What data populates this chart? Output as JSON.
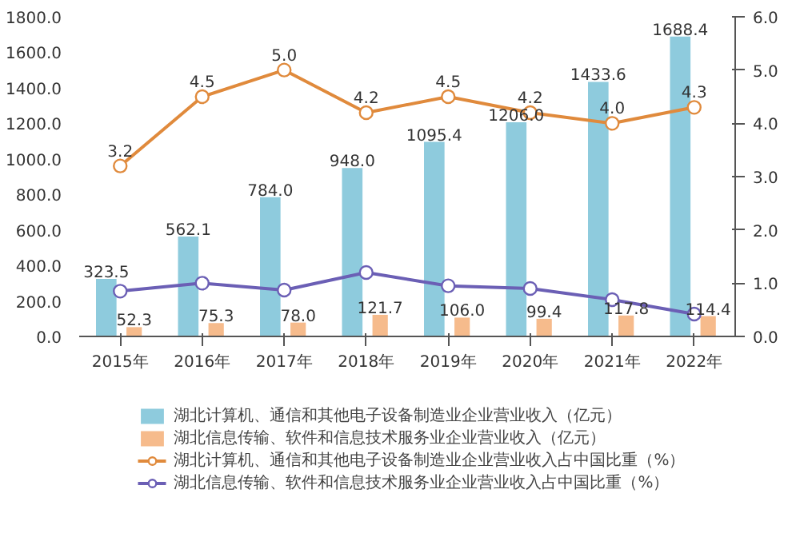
{
  "chart_data": {
    "type": "bar",
    "categories": [
      "2015年",
      "2016年",
      "2017年",
      "2018年",
      "2019年",
      "2020年",
      "2021年",
      "2022年"
    ],
    "series": [
      {
        "name": "湖北计算机、通信和其他电子设备制造业企业营业收入（亿元）",
        "color": "#8ecbdd",
        "values": [
          323.5,
          562.1,
          784.0,
          948.0,
          1095.4,
          1206.0,
          1433.6,
          1688.4
        ],
        "value_labels": [
          "323.5",
          "562.1",
          "784.0",
          "948.0",
          "1095.4",
          "1206.0",
          "1433.6",
          "1688.4"
        ]
      },
      {
        "name": "湖北信息传输、软件和信息技术服务业企业营业收入（亿元）",
        "color": "#f6bb8c",
        "values": [
          52.3,
          75.3,
          78.0,
          121.7,
          106.0,
          99.4,
          117.8,
          114.4
        ],
        "value_labels": [
          "52.3",
          "75.3",
          "78.0",
          "121.7",
          "106.0",
          "99.4",
          "117.8",
          "114.4"
        ]
      },
      {
        "name": "湖北计算机、通信和其他电子设备制造业企业营业收入占中国比重（%）",
        "type": "line",
        "axis": "y2",
        "color": "#e08a3c",
        "values": [
          3.2,
          4.5,
          5.0,
          4.2,
          4.5,
          4.2,
          4.0,
          4.3
        ],
        "value_labels": [
          "3.2",
          "4.5",
          "5.0",
          "4.2",
          "4.5",
          "4.2",
          "4.0",
          "4.3"
        ]
      },
      {
        "name": "湖北信息传输、软件和信息技术服务业企业营业收入占中国比重（%）",
        "type": "line",
        "axis": "y2",
        "color": "#6b5fb5",
        "values": [
          0.85,
          1.0,
          0.87,
          1.2,
          0.95,
          0.9,
          0.69,
          0.42
        ]
      }
    ],
    "ylim": [
      0,
      1800
    ],
    "yticks": [
      {
        "value": 0,
        "label": "0.0"
      },
      {
        "value": 200,
        "label": "200.0"
      },
      {
        "value": 400,
        "label": "400.0"
      },
      {
        "value": 600,
        "label": "600.0"
      },
      {
        "value": 800,
        "label": "800.0"
      },
      {
        "value": 1000,
        "label": "1000.0"
      },
      {
        "value": 1200,
        "label": "1200.0"
      },
      {
        "value": 1400,
        "label": "1400.0"
      },
      {
        "value": 1600,
        "label": "1600.0"
      },
      {
        "value": 1800,
        "label": "1800.0"
      }
    ],
    "y2lim": [
      0,
      6
    ],
    "y2ticks": [
      {
        "value": 0,
        "label": "0.0"
      },
      {
        "value": 1,
        "label": "1.0"
      },
      {
        "value": 2,
        "label": "2.0"
      },
      {
        "value": 3,
        "label": "3.0"
      },
      {
        "value": 4,
        "label": "4.0"
      },
      {
        "value": 5,
        "label": "5.0"
      },
      {
        "value": 6,
        "label": "6.0"
      }
    ],
    "marker": "circle",
    "grid": false,
    "legend": "bottom"
  }
}
